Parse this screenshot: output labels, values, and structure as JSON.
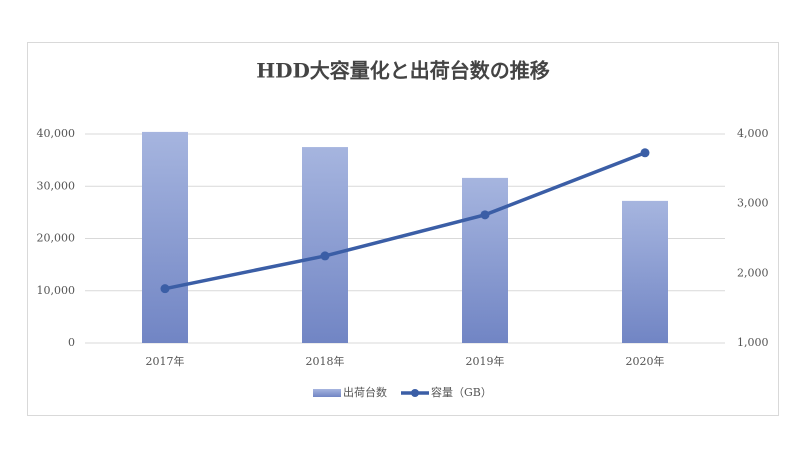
{
  "chart_data": {
    "type": "bar_line",
    "title": "HDD大容量化と出荷台数の推移",
    "categories": [
      "2017年",
      "2018年",
      "2019年",
      "2020年"
    ],
    "series": [
      {
        "name": "出荷台数",
        "type": "bar",
        "color": "#8a9dd4",
        "values": [
          40400,
          37500,
          31600,
          27200
        ]
      },
      {
        "name": "容量（GB）",
        "type": "line",
        "color": "#3b5ea6",
        "axis": "y2",
        "values": [
          1780,
          2250,
          2840,
          3730
        ]
      }
    ],
    "ylim": [
      0,
      40000
    ],
    "yticks": [
      0,
      {
        "value": 10000,
        "label": "10,000"
      },
      {
        "value": 20000,
        "label": "20,000"
      },
      {
        "value": 30000,
        "label": "30,000"
      },
      {
        "value": 40000,
        "label": "40,000"
      }
    ],
    "y2lim": [
      1000,
      4000
    ],
    "y2ticks": [
      {
        "value": 1000,
        "label": "1,000"
      },
      {
        "value": 2000,
        "label": "2,000"
      },
      {
        "value": 3000,
        "label": "3,000"
      },
      {
        "value": 4000,
        "label": "4,000"
      }
    ],
    "grid": true,
    "legend": "bottom"
  }
}
